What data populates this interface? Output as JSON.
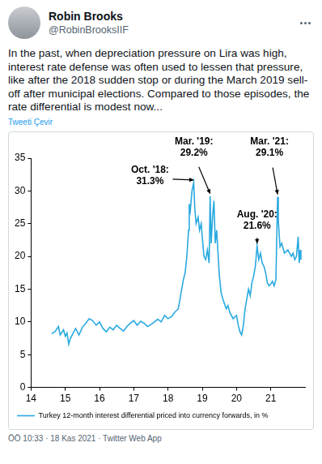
{
  "header": {
    "name": "Robin Brooks",
    "handle": "@RobinBrooksIIF"
  },
  "tweet_text": "In the past, when depreciation pressure on Lira was high, interest rate defense was often used to lessen that pressure, like after the 2018 sudden stop or during the March 2019 sell-off after municipal elections. Compared to those episodes, the rate differential is modest now...",
  "translate_link": "Tweeti Çevir",
  "footer": "ÖÖ 10:33 · 18 Kas 2021 · Twitter Web App",
  "chart_data": {
    "type": "line",
    "x": [
      14.6,
      14.7,
      14.8,
      14.85,
      14.95,
      15.0,
      15.05,
      15.1,
      15.15,
      15.2,
      15.3,
      15.4,
      15.5,
      15.6,
      15.7,
      15.8,
      15.9,
      16.0,
      16.1,
      16.2,
      16.3,
      16.4,
      16.5,
      16.6,
      16.7,
      16.8,
      16.9,
      17.0,
      17.1,
      17.2,
      17.3,
      17.4,
      17.5,
      17.6,
      17.7,
      17.8,
      17.9,
      18.0,
      18.1,
      18.2,
      18.3,
      18.35,
      18.4,
      18.45,
      18.5,
      18.55,
      18.6,
      18.62,
      18.65,
      18.7,
      18.75,
      18.78,
      18.82,
      18.88,
      18.92,
      18.97,
      19.0,
      19.05,
      19.1,
      19.15,
      19.2,
      19.23,
      19.26,
      19.3,
      19.34,
      19.38,
      19.42,
      19.46,
      19.5,
      19.55,
      19.6,
      19.7,
      19.75,
      19.8,
      19.9,
      20.0,
      20.05,
      20.1,
      20.15,
      20.2,
      20.25,
      20.3,
      20.35,
      20.4,
      20.45,
      20.5,
      20.55,
      20.6,
      20.65,
      20.7,
      20.75,
      20.8,
      20.85,
      20.9,
      20.95,
      21.0,
      21.05,
      21.1,
      21.15,
      21.2,
      21.22,
      21.27,
      21.32,
      21.4,
      21.5,
      21.6,
      21.65,
      21.7,
      21.75,
      21.8,
      21.83,
      21.86,
      21.88
    ],
    "series": [
      {
        "name": "Turkey 12-month interest differential priced into currency forwards, in %",
        "color": "#29a9e0",
        "values": [
          8.2,
          8.5,
          9.3,
          8.0,
          8.8,
          7.8,
          8.3,
          6.6,
          7.5,
          8.0,
          9.0,
          8.0,
          9.2,
          9.8,
          10.5,
          10.2,
          9.5,
          10.0,
          9.0,
          8.5,
          9.2,
          8.8,
          9.5,
          9.0,
          8.6,
          9.3,
          9.8,
          10.2,
          9.5,
          10.1,
          9.8,
          9.3,
          9.6,
          10.0,
          10.4,
          10.0,
          11.0,
          10.5,
          10.8,
          11.5,
          12.0,
          13.5,
          15.0,
          16.5,
          17.5,
          20.0,
          24.0,
          28.0,
          27.0,
          30.0,
          31.3,
          27.5,
          25.0,
          26.0,
          24.0,
          25.0,
          23.0,
          20.0,
          19.5,
          21.0,
          19.0,
          29.2,
          22.0,
          26.0,
          28.5,
          22.0,
          24.0,
          20.5,
          17.0,
          14.5,
          13.5,
          12.0,
          12.5,
          11.5,
          10.5,
          11.0,
          9.5,
          8.5,
          8.0,
          9.5,
          12.0,
          13.5,
          15.0,
          14.0,
          16.0,
          17.0,
          18.5,
          21.6,
          19.5,
          20.5,
          19.0,
          18.5,
          17.5,
          16.0,
          15.5,
          15.8,
          16.2,
          15.5,
          16.5,
          29.1,
          25.5,
          21.5,
          22.0,
          20.5,
          21.0,
          20.0,
          20.5,
          19.5,
          20.0,
          23.0,
          19.0,
          21.0,
          19.5
        ]
      }
    ],
    "xlim": [
      14,
      22
    ],
    "xticks": [
      14,
      15,
      16,
      17,
      18,
      19,
      20,
      21
    ],
    "ylim": [
      0,
      35
    ],
    "yticks": [
      0,
      5,
      10,
      15,
      20,
      25,
      30,
      35
    ],
    "grid": false,
    "legend": "lower left",
    "annotations": [
      {
        "text": [
          "Oct. '18:",
          "31.3%"
        ],
        "x": 18.75,
        "y": 31.3
      },
      {
        "text": [
          "Mar. '19:",
          "29.2%"
        ],
        "x": 19.23,
        "y": 29.2
      },
      {
        "text": [
          "Aug. '20:",
          "21.6%"
        ],
        "x": 20.6,
        "y": 21.6
      },
      {
        "text": [
          "Mar. '21:",
          "29.1%"
        ],
        "x": 21.2,
        "y": 29.1
      }
    ]
  }
}
